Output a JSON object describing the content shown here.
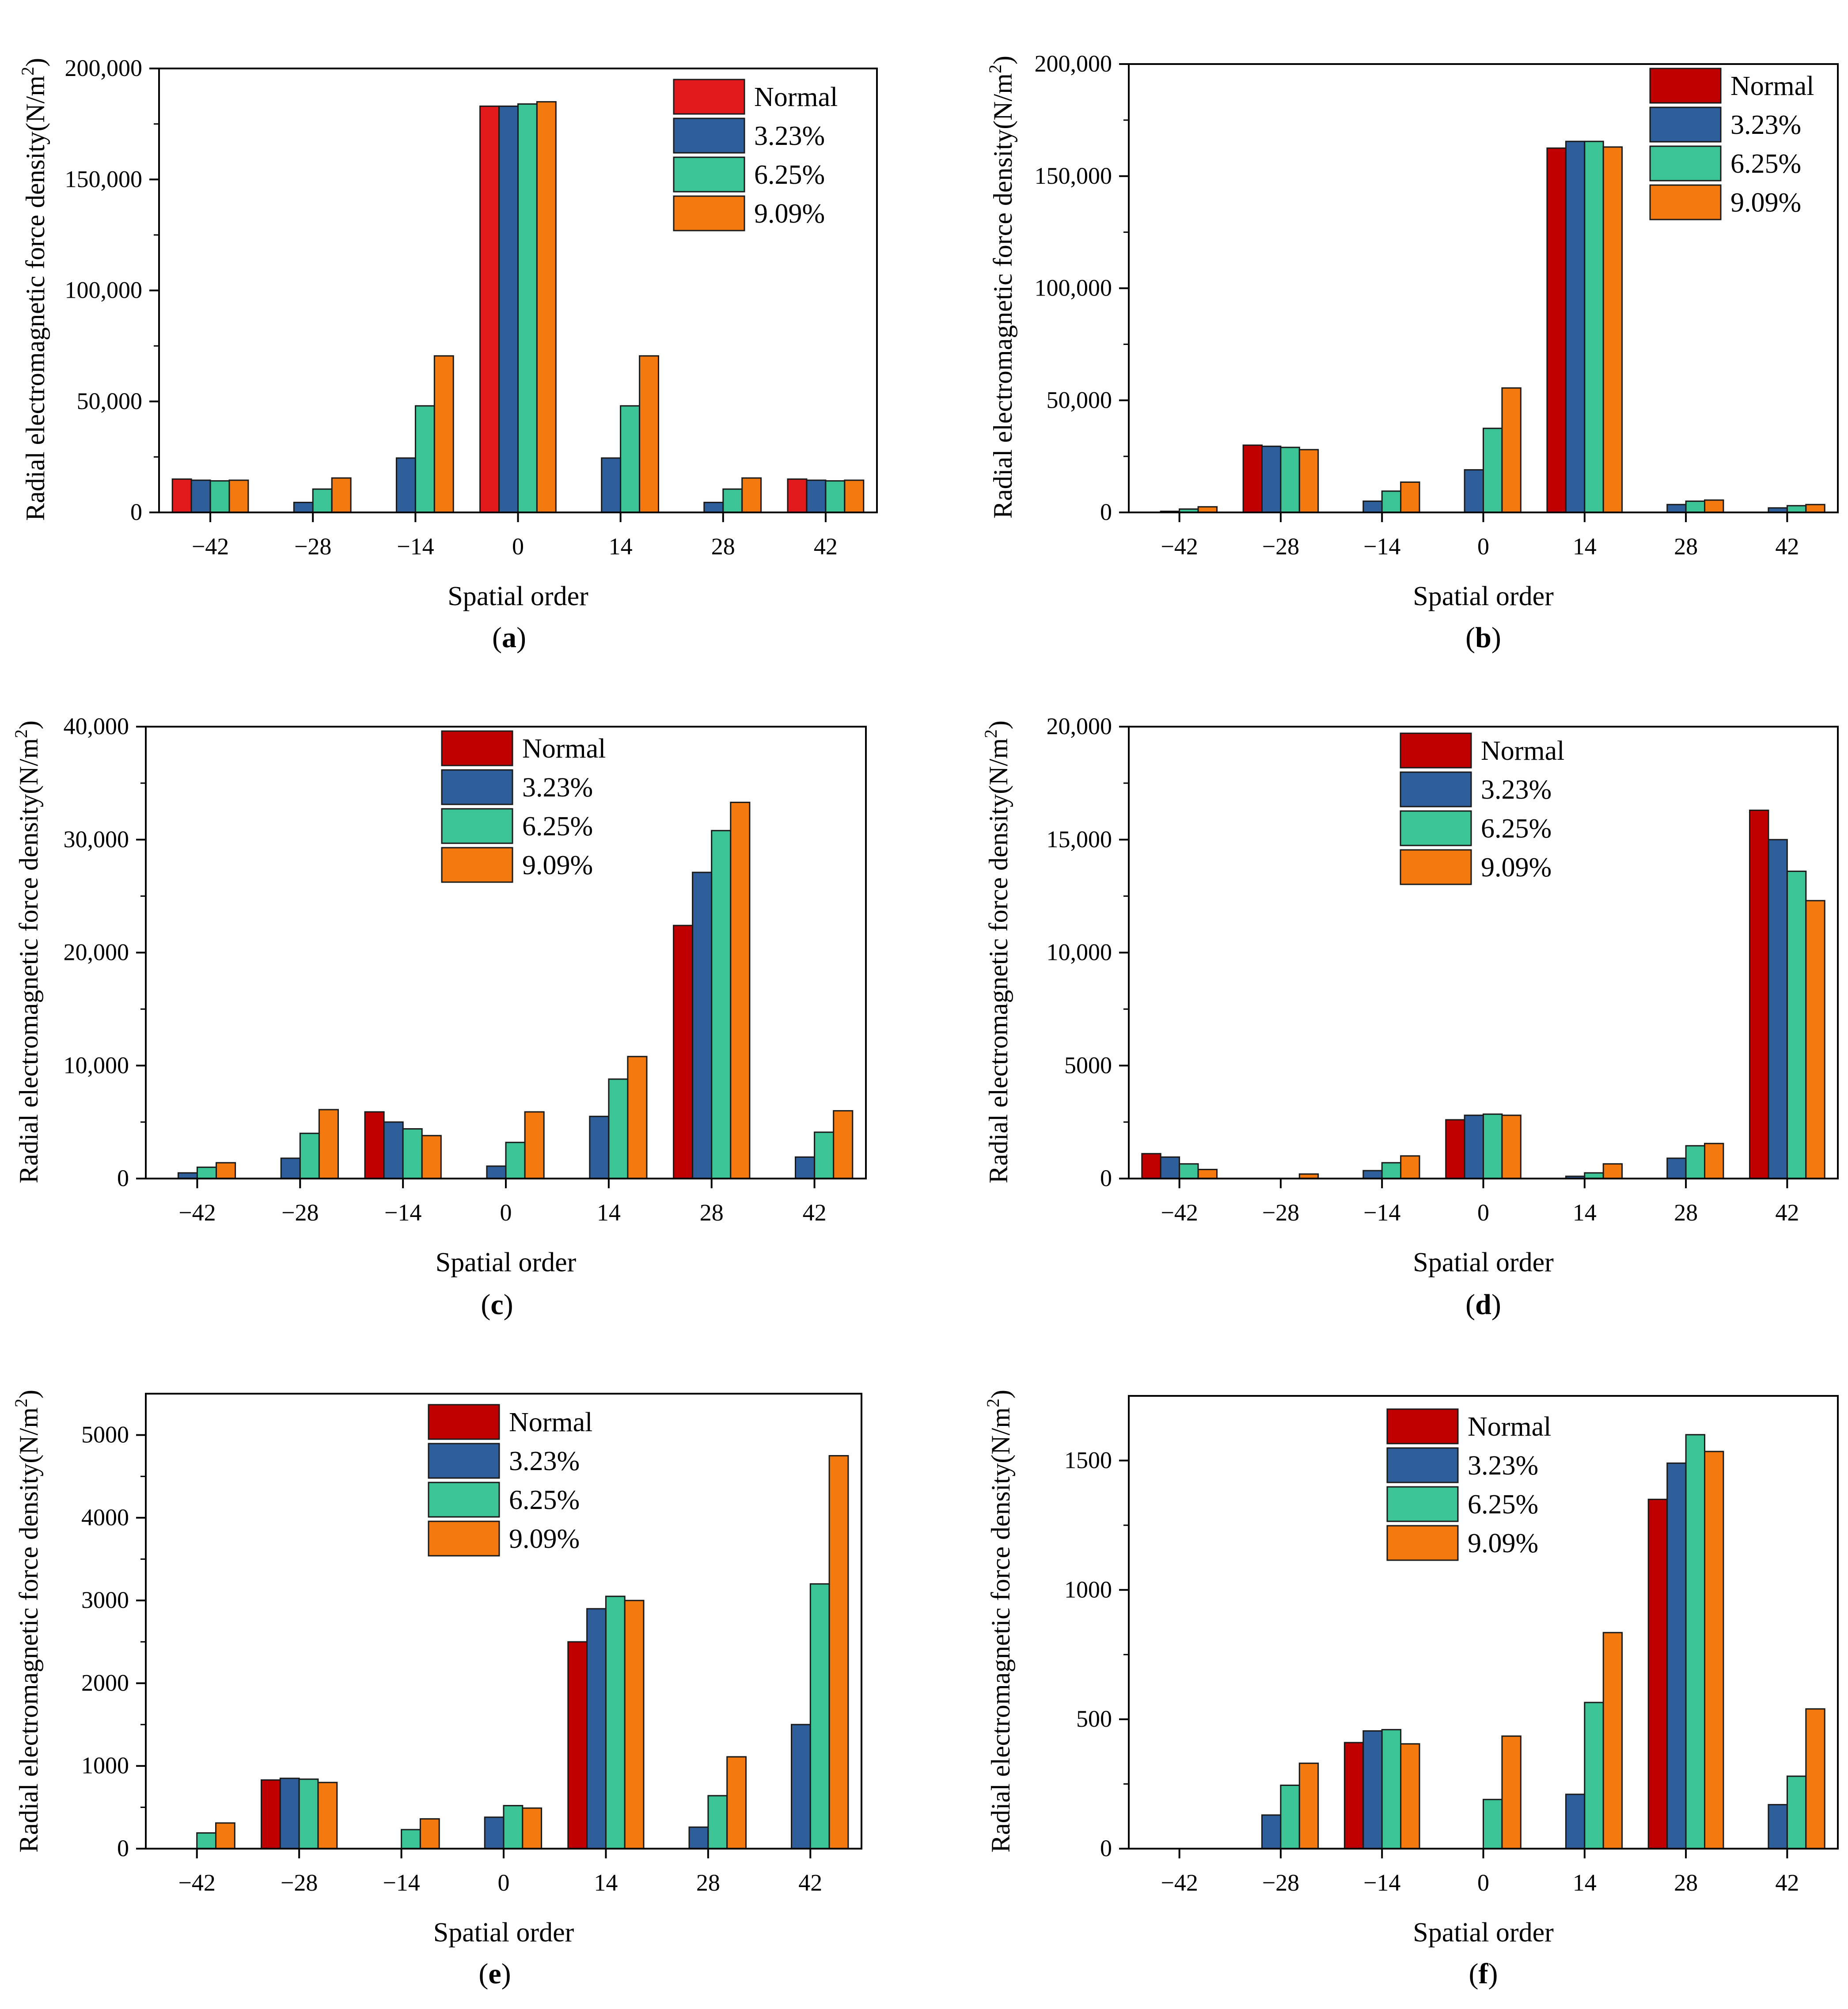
{
  "colors": {
    "Normal_a": "#e31a1c",
    "Normal": "#c00000",
    "3.23%": "#2f5f9a",
    "6.25%": "#3cc497",
    "9.09%": "#f47a10"
  },
  "chart_data": [
    {
      "panel": "(a)",
      "panel_letter": "a",
      "type": "bar",
      "xlabel": "Spatial order",
      "ylabel": "Radial electromagnetic force density(N/m2)",
      "ylabel_main": "Radial electromagnetic force density(N/m",
      "ylabel_sup": "2",
      "ylabel_tail": ")",
      "categories": [
        "−42",
        "−28",
        "−14",
        "0",
        "14",
        "28",
        "42"
      ],
      "ylim": [
        0,
        200000
      ],
      "yticks": [
        0,
        50000,
        100000,
        150000,
        200000
      ],
      "ytick_labels": [
        "0",
        "50,000",
        "100,000",
        "150,000",
        "200,000"
      ],
      "legend": [
        "Normal",
        "3.23%",
        "6.25%",
        "9.09%"
      ],
      "legend_position": "top-right",
      "series": [
        {
          "name": "Normal",
          "values": [
            15000,
            0,
            0,
            183000,
            0,
            0,
            15000
          ]
        },
        {
          "name": "3.23%",
          "values": [
            14500,
            4500,
            24500,
            183000,
            24500,
            4500,
            14500
          ]
        },
        {
          "name": "6.25%",
          "values": [
            14200,
            10500,
            48000,
            184000,
            48000,
            10500,
            14200
          ]
        },
        {
          "name": "9.09%",
          "values": [
            14500,
            15500,
            70500,
            185000,
            70500,
            15500,
            14500
          ]
        }
      ]
    },
    {
      "panel": "(b)",
      "panel_letter": "b",
      "type": "bar",
      "xlabel": "Spatial order",
      "ylabel": "Radial electromagnetic force density(N/m2)",
      "ylabel_main": "Radial electromagnetic force density(N/m",
      "ylabel_sup": "2",
      "ylabel_tail": ")",
      "categories": [
        "−42",
        "−28",
        "−14",
        "0",
        "14",
        "28",
        "42"
      ],
      "ylim": [
        0,
        200000
      ],
      "yticks": [
        0,
        50000,
        100000,
        150000,
        200000
      ],
      "ytick_labels": [
        "0",
        "50,000",
        "100,000",
        "150,000",
        "200,000"
      ],
      "legend": [
        "Normal",
        "3.23%",
        "6.25%",
        "9.09%"
      ],
      "legend_position": "top-right",
      "series": [
        {
          "name": "Normal",
          "values": [
            0,
            30000,
            0,
            0,
            162500,
            0,
            0
          ]
        },
        {
          "name": "3.23%",
          "values": [
            500,
            29500,
            5000,
            19000,
            165500,
            3500,
            2000
          ]
        },
        {
          "name": "6.25%",
          "values": [
            1500,
            29000,
            9500,
            37500,
            165500,
            5000,
            3000
          ]
        },
        {
          "name": "9.09%",
          "values": [
            2500,
            28000,
            13500,
            55500,
            163000,
            5500,
            3500
          ]
        }
      ]
    },
    {
      "panel": "(c)",
      "panel_letter": "c",
      "type": "bar",
      "xlabel": "Spatial order",
      "ylabel": "Radial electromagnetic force density(N/m2)",
      "ylabel_main": "Radial electromagnetic force density(N/m",
      "ylabel_sup": "2",
      "ylabel_tail": ")",
      "categories": [
        "−42",
        "−28",
        "−14",
        "0",
        "14",
        "28",
        "42"
      ],
      "ylim": [
        0,
        40000
      ],
      "yticks": [
        0,
        10000,
        20000,
        30000,
        40000
      ],
      "ytick_labels": [
        "0",
        "10,000",
        "20,000",
        "30,000",
        "40,000"
      ],
      "legend": [
        "Normal",
        "3.23%",
        "6.25%",
        "9.09%"
      ],
      "legend_position": "top-center",
      "series": [
        {
          "name": "Normal",
          "values": [
            0,
            0,
            5900,
            0,
            0,
            22400,
            0
          ]
        },
        {
          "name": "3.23%",
          "values": [
            500,
            1800,
            5000,
            1100,
            5500,
            27100,
            1900
          ]
        },
        {
          "name": "6.25%",
          "values": [
            1000,
            4000,
            4400,
            3200,
            8800,
            30800,
            4100
          ]
        },
        {
          "name": "9.09%",
          "values": [
            1400,
            6100,
            3800,
            5900,
            10800,
            33300,
            6000
          ]
        }
      ]
    },
    {
      "panel": "(d)",
      "panel_letter": "d",
      "type": "bar",
      "xlabel": "Spatial order",
      "ylabel": "Radial electromagnetic force density(N/m2)",
      "ylabel_main": "Radial electromagnetic force density(N/m",
      "ylabel_sup": "2",
      "ylabel_tail": ")",
      "categories": [
        "−42",
        "−28",
        "−14",
        "0",
        "14",
        "28",
        "42"
      ],
      "ylim": [
        0,
        20000
      ],
      "yticks": [
        0,
        5000,
        10000,
        15000,
        20000
      ],
      "ytick_labels": [
        "0",
        "5000",
        "10,000",
        "15,000",
        "20,000"
      ],
      "legend": [
        "Normal",
        "3.23%",
        "6.25%",
        "9.09%"
      ],
      "legend_position": "top-center",
      "series": [
        {
          "name": "Normal",
          "values": [
            1100,
            0,
            0,
            2600,
            0,
            0,
            16300
          ]
        },
        {
          "name": "3.23%",
          "values": [
            950,
            0,
            350,
            2800,
            100,
            900,
            15000
          ]
        },
        {
          "name": "6.25%",
          "values": [
            650,
            0,
            700,
            2850,
            250,
            1450,
            13600
          ]
        },
        {
          "name": "9.09%",
          "values": [
            400,
            200,
            1000,
            2800,
            650,
            1550,
            12300
          ]
        }
      ]
    },
    {
      "panel": "(e)",
      "panel_letter": "e",
      "type": "bar",
      "xlabel": "Spatial order",
      "ylabel": "Radial electromagnetic force density(N/m2)",
      "ylabel_main": "Radial electromagnetic force density(N/m",
      "ylabel_sup": "2",
      "ylabel_tail": ")",
      "categories": [
        "−42",
        "−28",
        "−14",
        "0",
        "14",
        "28",
        "42"
      ],
      "ylim": [
        0,
        5500
      ],
      "yticks": [
        0,
        1000,
        2000,
        3000,
        4000,
        5000
      ],
      "ytick_labels": [
        "0",
        "1000",
        "2000",
        "3000",
        "4000",
        "5000"
      ],
      "legend": [
        "Normal",
        "3.23%",
        "6.25%",
        "9.09%"
      ],
      "legend_position": "top-center",
      "series": [
        {
          "name": "Normal",
          "values": [
            0,
            830,
            0,
            0,
            2500,
            0,
            0
          ]
        },
        {
          "name": "3.23%",
          "values": [
            0,
            850,
            0,
            380,
            2900,
            260,
            1500
          ]
        },
        {
          "name": "6.25%",
          "values": [
            190,
            840,
            230,
            520,
            3050,
            640,
            3200
          ]
        },
        {
          "name": "9.09%",
          "values": [
            310,
            800,
            360,
            490,
            3000,
            1110,
            4750
          ]
        }
      ]
    },
    {
      "panel": "(f)",
      "panel_letter": "f",
      "type": "bar",
      "xlabel": "Spatial order",
      "ylabel": "Radial electromagnetic force density(N/m2)",
      "ylabel_main": "Radial electromagnetic force density(N/m",
      "ylabel_sup": "2",
      "ylabel_tail": ")",
      "categories": [
        "−42",
        "−28",
        "−14",
        "0",
        "14",
        "28",
        "42"
      ],
      "ylim": [
        0,
        1750
      ],
      "yticks": [
        0,
        500,
        1000,
        1500
      ],
      "ytick_labels": [
        "0",
        "500",
        "1000",
        "1500"
      ],
      "legend": [
        "Normal",
        "3.23%",
        "6.25%",
        "9.09%"
      ],
      "legend_position": "top-center",
      "series": [
        {
          "name": "Normal",
          "values": [
            0,
            0,
            410,
            0,
            0,
            1350,
            0
          ]
        },
        {
          "name": "3.23%",
          "values": [
            0,
            130,
            455,
            0,
            210,
            1490,
            170
          ]
        },
        {
          "name": "6.25%",
          "values": [
            0,
            245,
            460,
            190,
            565,
            1600,
            280
          ]
        },
        {
          "name": "9.09%",
          "values": [
            0,
            330,
            405,
            435,
            835,
            1535,
            540
          ]
        }
      ]
    }
  ]
}
